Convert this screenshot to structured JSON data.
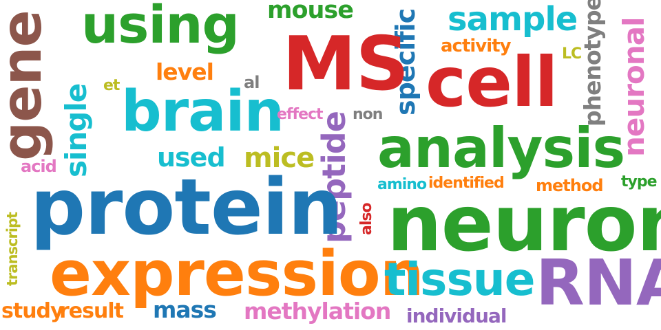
{
  "palette": {
    "green": "#2ca02c",
    "red": "#d62728",
    "cyan": "#17becf",
    "blue": "#1f77b4",
    "orange": "#ff7f0e",
    "purple": "#9467bd",
    "pink": "#e377c2",
    "brown": "#8c564b",
    "gray": "#7f7f7f",
    "olive": "#bcbd22"
  },
  "words": {
    "gene": "gene",
    "using": "using",
    "mouse": "mouse",
    "specific": "specific",
    "sample": "sample",
    "phenotype": "phenotype",
    "neuronal": "neuronal",
    "ms": "MS",
    "cell": "cell",
    "activity": "activity",
    "lc": "LC",
    "level": "level",
    "al": "al",
    "et": "et",
    "single": "single",
    "brain": "brain",
    "effect": "effect",
    "non": "non",
    "peptide": "peptide",
    "analysis": "analysis",
    "used": "used",
    "mice": "mice",
    "acid": "acid",
    "amino": "amino",
    "identified": "identified",
    "method": "method",
    "type": "type",
    "protein": "protein",
    "neuron": "neuron",
    "also": "also",
    "transcript": "transcript",
    "expression": "expression",
    "tissue": "tissue",
    "rna": "RNA",
    "study": "study",
    "result": "result",
    "mass": "mass",
    "methylation": "methylation",
    "individual": "individual"
  }
}
